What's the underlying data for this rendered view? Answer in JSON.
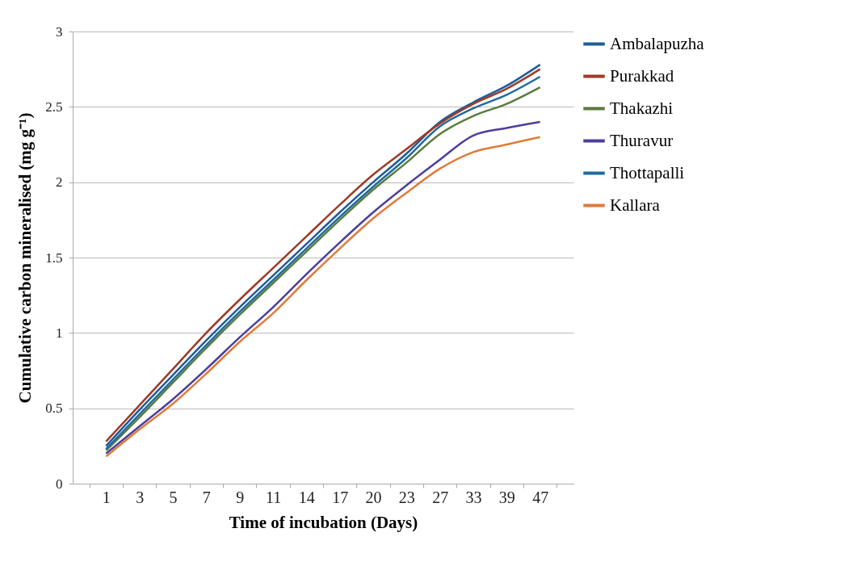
{
  "chart_data": {
    "type": "line",
    "xlabel": "Time of incubation (Days)",
    "ylabel": "Cumulative carbon mineralised (mg g⁻¹)",
    "categories": [
      "1",
      "3",
      "5",
      "7",
      "9",
      "11",
      "14",
      "17",
      "20",
      "23",
      "27",
      "33",
      "39",
      "47"
    ],
    "series": [
      {
        "name": "Ambalapuzha",
        "color": "#1f5c99",
        "values": [
          0.25,
          0.49,
          0.72,
          0.95,
          1.17,
          1.38,
          1.59,
          1.8,
          2.0,
          2.19,
          2.4,
          2.53,
          2.64,
          2.78
        ]
      },
      {
        "name": "Purakkad",
        "color": "#9e3a26",
        "values": [
          0.28,
          0.52,
          0.76,
          1.0,
          1.22,
          1.43,
          1.64,
          1.85,
          2.05,
          2.22,
          2.39,
          2.52,
          2.62,
          2.75
        ]
      },
      {
        "name": "Thakazhi",
        "color": "#5b7b3c",
        "values": [
          0.22,
          0.44,
          0.67,
          0.9,
          1.12,
          1.33,
          1.54,
          1.75,
          1.95,
          2.13,
          2.32,
          2.44,
          2.52,
          2.63
        ]
      },
      {
        "name": "Thuravur",
        "color": "#4a3f9c",
        "values": [
          0.2,
          0.38,
          0.56,
          0.76,
          0.97,
          1.17,
          1.39,
          1.6,
          1.8,
          1.98,
          2.15,
          2.31,
          2.36,
          2.4
        ]
      },
      {
        "name": "Thottapalli",
        "color": "#1f6a9e",
        "values": [
          0.23,
          0.46,
          0.69,
          0.92,
          1.14,
          1.35,
          1.56,
          1.77,
          1.97,
          2.16,
          2.37,
          2.49,
          2.58,
          2.7
        ]
      },
      {
        "name": "Kallara",
        "color": "#e07b39",
        "values": [
          0.18,
          0.36,
          0.53,
          0.73,
          0.94,
          1.13,
          1.35,
          1.56,
          1.76,
          1.93,
          2.09,
          2.2,
          2.25,
          2.3
        ]
      }
    ],
    "ylim": [
      0,
      3
    ],
    "yticks": [
      0,
      0.5,
      1,
      1.5,
      2,
      2.5,
      3
    ],
    "grid": "y",
    "legend": "right",
    "marker": "none",
    "line_style": "solid"
  }
}
